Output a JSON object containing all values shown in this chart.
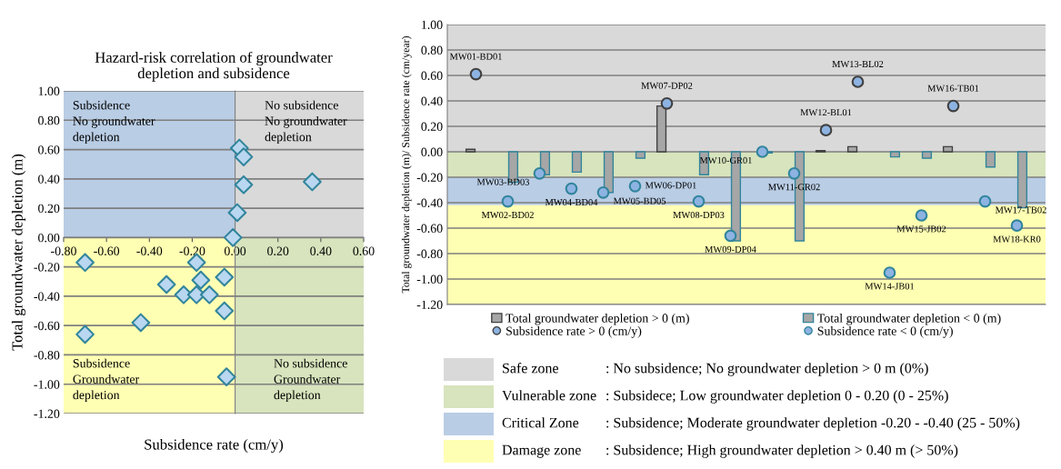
{
  "chart_data": [
    {
      "type": "scatter",
      "title": "Hazard-risk correlation of groundwater\ndepletion and subsidence",
      "xlabel": "Subsidence rate (cm/y)",
      "ylabel": "Total groundwater depletion (m)",
      "x": [
        0.02,
        -0.24,
        -0.18,
        -0.16,
        -0.32,
        -0.05,
        0.36,
        -0.18,
        -0.7,
        -0.01,
        -0.7,
        0.01,
        0.04,
        -0.04,
        -0.05,
        0.04,
        -0.12,
        -0.44
      ],
      "values": [
        0.61,
        -0.39,
        -0.17,
        -0.29,
        -0.32,
        -0.27,
        0.38,
        -0.39,
        -0.66,
        0.0,
        -0.17,
        0.17,
        0.55,
        -0.95,
        -0.5,
        0.36,
        -0.39,
        -0.58
      ],
      "color": "#b9d7f0",
      "marker": "diamond",
      "grid": "y",
      "xlim": [
        -0.8,
        0.6
      ],
      "ylim": [
        -1.2,
        1.0
      ],
      "xticks": [
        {
          "value": -0.8,
          "label": "-0.80"
        },
        {
          "value": -0.6,
          "label": "-0.60"
        },
        {
          "value": -0.4,
          "label": "-0.40"
        },
        {
          "value": -0.2,
          "label": "-0.20"
        },
        {
          "value": 0,
          "label": "0.00"
        },
        {
          "value": 0.2,
          "label": "0.20"
        },
        {
          "value": 0.4,
          "label": "0.40"
        },
        {
          "value": 0.6,
          "label": "0.60"
        }
      ],
      "yticks": [
        {
          "value": 1.0,
          "label": "1.00"
        },
        {
          "value": 0.8,
          "label": "0.80"
        },
        {
          "value": 0.6,
          "label": "0.60"
        },
        {
          "value": 0.4,
          "label": "0.40"
        },
        {
          "value": 0.2,
          "label": "0.20"
        },
        {
          "value": 0,
          "label": "0.00"
        },
        {
          "value": -0.2,
          "label": "-0.20"
        },
        {
          "value": -0.4,
          "label": "-0.40"
        },
        {
          "value": -0.6,
          "label": "-0.60"
        },
        {
          "value": -0.8,
          "label": "-0.80"
        },
        {
          "value": -1.0,
          "label": "-1.00"
        },
        {
          "value": -1.2,
          "label": "-1.20"
        }
      ],
      "annotations": [
        "Subsidence\nNo groundwater\ndepletion",
        "No subsidence\nNo groundwater\ndepletion",
        "Subsidence\nGroundwater\ndepletion",
        "No subsidence\nGroundwater\ndepletion"
      ]
    },
    {
      "type": "bar",
      "ylabel": "Total groundwater depletion (m)/ Subsidence rate (cm/year)",
      "categories": [
        null,
        null,
        null,
        null,
        null,
        null,
        null,
        null,
        null,
        null,
        null,
        null,
        null,
        null,
        null,
        null,
        null,
        null
      ],
      "ylim": [
        -1.2,
        1.0
      ],
      "grid": "y",
      "tick_labels": "y",
      "legend": "bottom",
      "yticks": [
        {
          "value": 1.0,
          "label": "1.00"
        },
        {
          "value": 0.8,
          "label": "0.80"
        },
        {
          "value": 0.6,
          "label": "0.60"
        },
        {
          "value": 0.4,
          "label": "0.40"
        },
        {
          "value": 0.2,
          "label": "0.20"
        },
        {
          "value": 0,
          "label": "0.00"
        },
        {
          "value": -0.2,
          "label": "-0.20"
        },
        {
          "value": -0.4,
          "label": "-0.40"
        },
        {
          "value": -0.6,
          "label": "-0.60"
        },
        {
          "value": -0.8,
          "label": "-0.80"
        },
        {
          "value": -1.0,
          "label": "-1.00"
        },
        {
          "value": -1.2,
          "label": "-1.20"
        }
      ],
      "series": [
        {
          "name": "Total groundwater depletion > 0 (m)",
          "type": "bar",
          "color": "#a6a6a6",
          "values": [
            0.02,
            null,
            null,
            null,
            null,
            null,
            0.36,
            null,
            null,
            null,
            null,
            0.01,
            0.04,
            null,
            null,
            0.04,
            null,
            null
          ]
        },
        {
          "name": "Total groundwater depletion < 0 (m)",
          "type": "bar",
          "color": "#a6a6a6",
          "values": [
            null,
            -0.24,
            -0.18,
            -0.16,
            -0.32,
            -0.05,
            null,
            -0.18,
            -0.7,
            -0.01,
            -0.7,
            null,
            null,
            -0.04,
            -0.05,
            null,
            -0.12,
            -0.44
          ]
        },
        {
          "name": "Subsidence rate > 0 (cm/y)",
          "type": "scatter",
          "color": "#8db3e2",
          "marker": "circle",
          "values": [
            0.61,
            null,
            null,
            null,
            null,
            null,
            0.38,
            null,
            null,
            null,
            null,
            0.17,
            0.55,
            null,
            null,
            0.36,
            null,
            null
          ],
          "value_labels": [
            "MW01-BD01",
            null,
            null,
            null,
            null,
            null,
            "MW07-DP02",
            null,
            null,
            null,
            null,
            "MW12-BL01",
            "MW13-BL02",
            null,
            null,
            "MW16-TB01",
            null,
            null
          ]
        },
        {
          "name": "Subsidence rate < 0 (cm/y)",
          "type": "scatter",
          "color": "#8db3e2",
          "marker": "circle",
          "values": [
            null,
            -0.39,
            -0.17,
            -0.29,
            -0.32,
            -0.27,
            null,
            -0.39,
            -0.66,
            0.0,
            -0.17,
            null,
            null,
            -0.95,
            -0.5,
            null,
            -0.39,
            -0.58
          ],
          "value_labels": [
            null,
            "MW02-BD02",
            "MW03-BD03",
            "MW04-BD04",
            "MW05-BD05",
            "MW06-DP01",
            null,
            "MW08-DP03",
            "MW09-DP04",
            "MW10-GR01",
            "MW11-GR02",
            null,
            null,
            "MW14-JB01",
            "MW15-JB02",
            null,
            "MW17-TB02",
            "MW18-KR0"
          ]
        }
      ],
      "bands": [
        {
          "axis": "y",
          "from": 0,
          "to": 1.0,
          "color": "#d9d9d9",
          "label": "Safe zone"
        },
        {
          "axis": "y",
          "from": -0.2,
          "to": 0,
          "color": "#d7e4bd",
          "label": "Vulnerable zone"
        },
        {
          "axis": "y",
          "from": -0.42,
          "to": -0.2,
          "color": "#b9cde5",
          "label": "Critical Zone"
        },
        {
          "axis": "y",
          "from": -1.2,
          "to": -0.42,
          "color": "#ffffb3",
          "label": "Damage zone"
        }
      ],
      "annotations": [
        ": No subsidence; No groundwater depletion > 0 m (0%)",
        ": Subsidece; Low groundwater depletion 0 - 0.20 (0 - 25%)",
        ": Subsidence; Moderate groundwater depletion -0.20 - -0.40 (25 - 50%)",
        ": Subsidence; High groundwater depletion > 0.40 m (> 50%)"
      ]
    }
  ]
}
